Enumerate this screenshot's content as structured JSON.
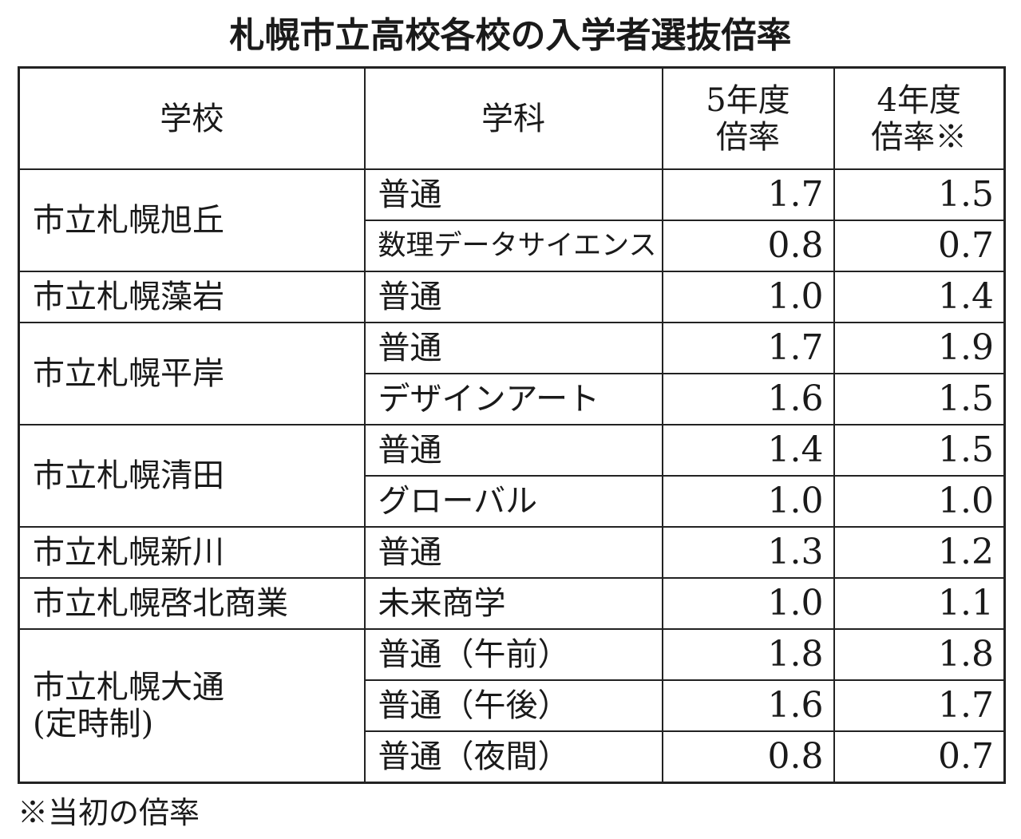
{
  "header": {
    "title": "札幌市立高校各校の入学者選抜倍率"
  },
  "table": {
    "headers": [
      [
        "学校"
      ],
      [
        "学科"
      ],
      [
        "5年度",
        "倍率"
      ],
      [
        "4年度",
        "倍率※"
      ]
    ],
    "schools": [
      {
        "name": [
          "市立札幌旭丘"
        ],
        "courses": [
          {
            "name": "普通",
            "r5": "1.7",
            "r4": "1.5"
          },
          {
            "name": "数理データサイエンス",
            "r5": "0.8",
            "r4": "0.7"
          }
        ]
      },
      {
        "name": [
          "市立札幌藻岩"
        ],
        "courses": [
          {
            "name": "普通",
            "r5": "1.0",
            "r4": "1.4"
          }
        ]
      },
      {
        "name": [
          "市立札幌平岸"
        ],
        "courses": [
          {
            "name": "普通",
            "r5": "1.7",
            "r4": "1.9"
          },
          {
            "name": "デザインアート",
            "r5": "1.6",
            "r4": "1.5"
          }
        ]
      },
      {
        "name": [
          "市立札幌清田"
        ],
        "courses": [
          {
            "name": "普通",
            "r5": "1.4",
            "r4": "1.5"
          },
          {
            "name": "グローバル",
            "r5": "1.0",
            "r4": "1.0"
          }
        ]
      },
      {
        "name": [
          "市立札幌新川"
        ],
        "courses": [
          {
            "name": "普通",
            "r5": "1.3",
            "r4": "1.2"
          }
        ]
      },
      {
        "name": [
          "市立札幌啓北商業"
        ],
        "courses": [
          {
            "name": "未来商学",
            "r5": "1.0",
            "r4": "1.1"
          }
        ]
      },
      {
        "name": [
          "市立札幌大通",
          "(定時制)"
        ],
        "courses": [
          {
            "name": "普通（午前）",
            "r5": "1.8",
            "r4": "1.8"
          },
          {
            "name": "普通（午後）",
            "r5": "1.6",
            "r4": "1.7"
          },
          {
            "name": "普通（夜間）",
            "r5": "0.8",
            "r4": "0.7"
          }
        ]
      }
    ]
  },
  "footnote": "※当初の倍率"
}
